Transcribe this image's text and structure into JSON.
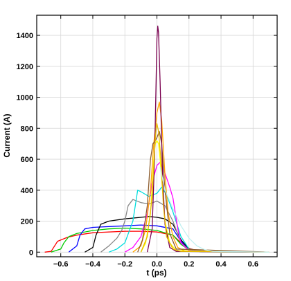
{
  "chart_data": {
    "type": "line",
    "title": "",
    "xlabel": "t (ps)",
    "ylabel": "Current (A)",
    "xlim": [
      -0.75,
      0.75
    ],
    "ylim": [
      -30,
      1530
    ],
    "grid": true,
    "xticks": [
      -0.6,
      -0.4,
      -0.2,
      0.0,
      0.2,
      0.4,
      0.6
    ],
    "xtick_labels": [
      "−0.6",
      "−0.4",
      "−0.2",
      "0.0",
      "0.2",
      "0.4",
      "0.6"
    ],
    "yticks": [
      0,
      200,
      400,
      600,
      800,
      1000,
      1200,
      1400
    ],
    "ytick_labels": [
      "0",
      "200",
      "400",
      "600",
      "800",
      "1000",
      "1200",
      "1400"
    ],
    "series": [
      {
        "color": "#ff0000",
        "x": [
          -0.7,
          -0.66,
          -0.62,
          -0.56,
          -0.5,
          -0.4,
          -0.3,
          -0.2,
          -0.1,
          0.0,
          0.1,
          0.15,
          0.2,
          0.25,
          0.3,
          0.4,
          0.7
        ],
        "y": [
          0,
          5,
          70,
          95,
          110,
          125,
          130,
          135,
          135,
          130,
          110,
          60,
          25,
          10,
          5,
          3,
          0
        ]
      },
      {
        "color": "#00cc00",
        "x": [
          -0.66,
          -0.6,
          -0.58,
          -0.55,
          -0.5,
          -0.4,
          -0.3,
          -0.2,
          -0.1,
          0.0,
          0.1,
          0.15,
          0.2,
          0.25,
          0.3,
          0.7
        ],
        "y": [
          0,
          20,
          60,
          100,
          120,
          140,
          150,
          155,
          150,
          140,
          110,
          50,
          15,
          5,
          2,
          0
        ]
      },
      {
        "color": "#0000ff",
        "x": [
          -0.55,
          -0.5,
          -0.48,
          -0.45,
          -0.4,
          -0.3,
          -0.2,
          -0.1,
          0.0,
          0.1,
          0.15,
          0.2,
          0.25,
          0.3,
          0.7
        ],
        "y": [
          0,
          40,
          110,
          150,
          160,
          165,
          170,
          175,
          170,
          150,
          70,
          20,
          5,
          2,
          0
        ]
      },
      {
        "color": "#000000",
        "x": [
          -0.45,
          -0.4,
          -0.38,
          -0.35,
          -0.3,
          -0.2,
          -0.1,
          -0.05,
          0.0,
          0.05,
          0.1,
          0.15,
          0.2,
          0.25,
          0.7
        ],
        "y": [
          0,
          30,
          110,
          180,
          200,
          215,
          225,
          230,
          225,
          215,
          180,
          80,
          20,
          5,
          0
        ]
      },
      {
        "color": "#888888",
        "x": [
          -0.35,
          -0.3,
          -0.25,
          -0.22,
          -0.2,
          -0.18,
          -0.15,
          -0.1,
          -0.05,
          0.0,
          0.05,
          0.1,
          0.15,
          0.2,
          0.25,
          0.7
        ],
        "y": [
          0,
          40,
          90,
          140,
          200,
          300,
          340,
          320,
          310,
          330,
          300,
          200,
          60,
          15,
          5,
          0
        ]
      },
      {
        "color": "#00dddd",
        "x": [
          -0.3,
          -0.25,
          -0.2,
          -0.15,
          -0.12,
          -0.1,
          -0.05,
          0.0,
          0.03,
          0.06,
          0.1,
          0.15,
          0.2,
          0.3,
          0.7
        ],
        "y": [
          0,
          20,
          60,
          200,
          400,
          390,
          360,
          380,
          420,
          370,
          260,
          100,
          20,
          5,
          0
        ]
      },
      {
        "color": "#ff00ff",
        "x": [
          -0.2,
          -0.15,
          -0.1,
          -0.06,
          -0.03,
          0.0,
          0.02,
          0.04,
          0.06,
          0.08,
          0.1,
          0.13,
          0.15,
          0.2,
          0.7
        ],
        "y": [
          0,
          30,
          100,
          250,
          450,
          560,
          580,
          540,
          480,
          420,
          350,
          150,
          60,
          10,
          0
        ]
      },
      {
        "color": "#ffa500",
        "x": [
          -0.15,
          -0.1,
          -0.07,
          -0.04,
          -0.02,
          0.0,
          0.015,
          0.03,
          0.05,
          0.07,
          0.1,
          0.13,
          0.18,
          0.7
        ],
        "y": [
          0,
          40,
          150,
          400,
          700,
          900,
          970,
          850,
          500,
          250,
          100,
          30,
          5,
          0
        ]
      },
      {
        "color": "#ffff00",
        "x": [
          -0.1,
          -0.07,
          -0.04,
          -0.02,
          -0.01,
          0.0,
          0.01,
          0.02,
          0.035,
          0.05,
          0.08,
          0.12,
          0.7
        ],
        "y": [
          0,
          60,
          250,
          600,
          700,
          720,
          700,
          600,
          400,
          200,
          60,
          10,
          0
        ]
      },
      {
        "color": "#8b5a2b",
        "x": [
          -0.12,
          -0.09,
          -0.06,
          -0.04,
          -0.025,
          -0.01,
          0.0,
          0.015,
          0.03,
          0.05,
          0.08,
          0.12,
          0.7
        ],
        "y": [
          0,
          80,
          300,
          600,
          700,
          720,
          740,
          780,
          700,
          400,
          120,
          20,
          0
        ]
      },
      {
        "color": "#7a0050",
        "x": [
          -0.06,
          -0.03,
          -0.015,
          -0.005,
          0.0,
          0.005,
          0.01,
          0.02,
          0.035,
          0.05,
          0.08,
          0.12,
          0.7
        ],
        "y": [
          0,
          150,
          600,
          1100,
          1380,
          1460,
          1420,
          1100,
          500,
          180,
          30,
          5,
          0
        ]
      },
      {
        "color": "#e6b800",
        "x": [
          -0.1,
          -0.06,
          -0.03,
          -0.015,
          -0.005,
          0.0,
          0.01,
          0.025,
          0.04,
          0.06,
          0.1,
          0.15,
          0.7
        ],
        "y": [
          0,
          100,
          350,
          650,
          800,
          830,
          780,
          600,
          300,
          100,
          20,
          5,
          0
        ]
      },
      {
        "color": "#c0f0f0",
        "x": [
          0.02,
          0.05,
          0.1,
          0.15,
          0.2,
          0.25,
          0.3,
          0.35,
          0.7
        ],
        "y": [
          550,
          400,
          280,
          170,
          90,
          40,
          15,
          5,
          0
        ]
      }
    ]
  }
}
